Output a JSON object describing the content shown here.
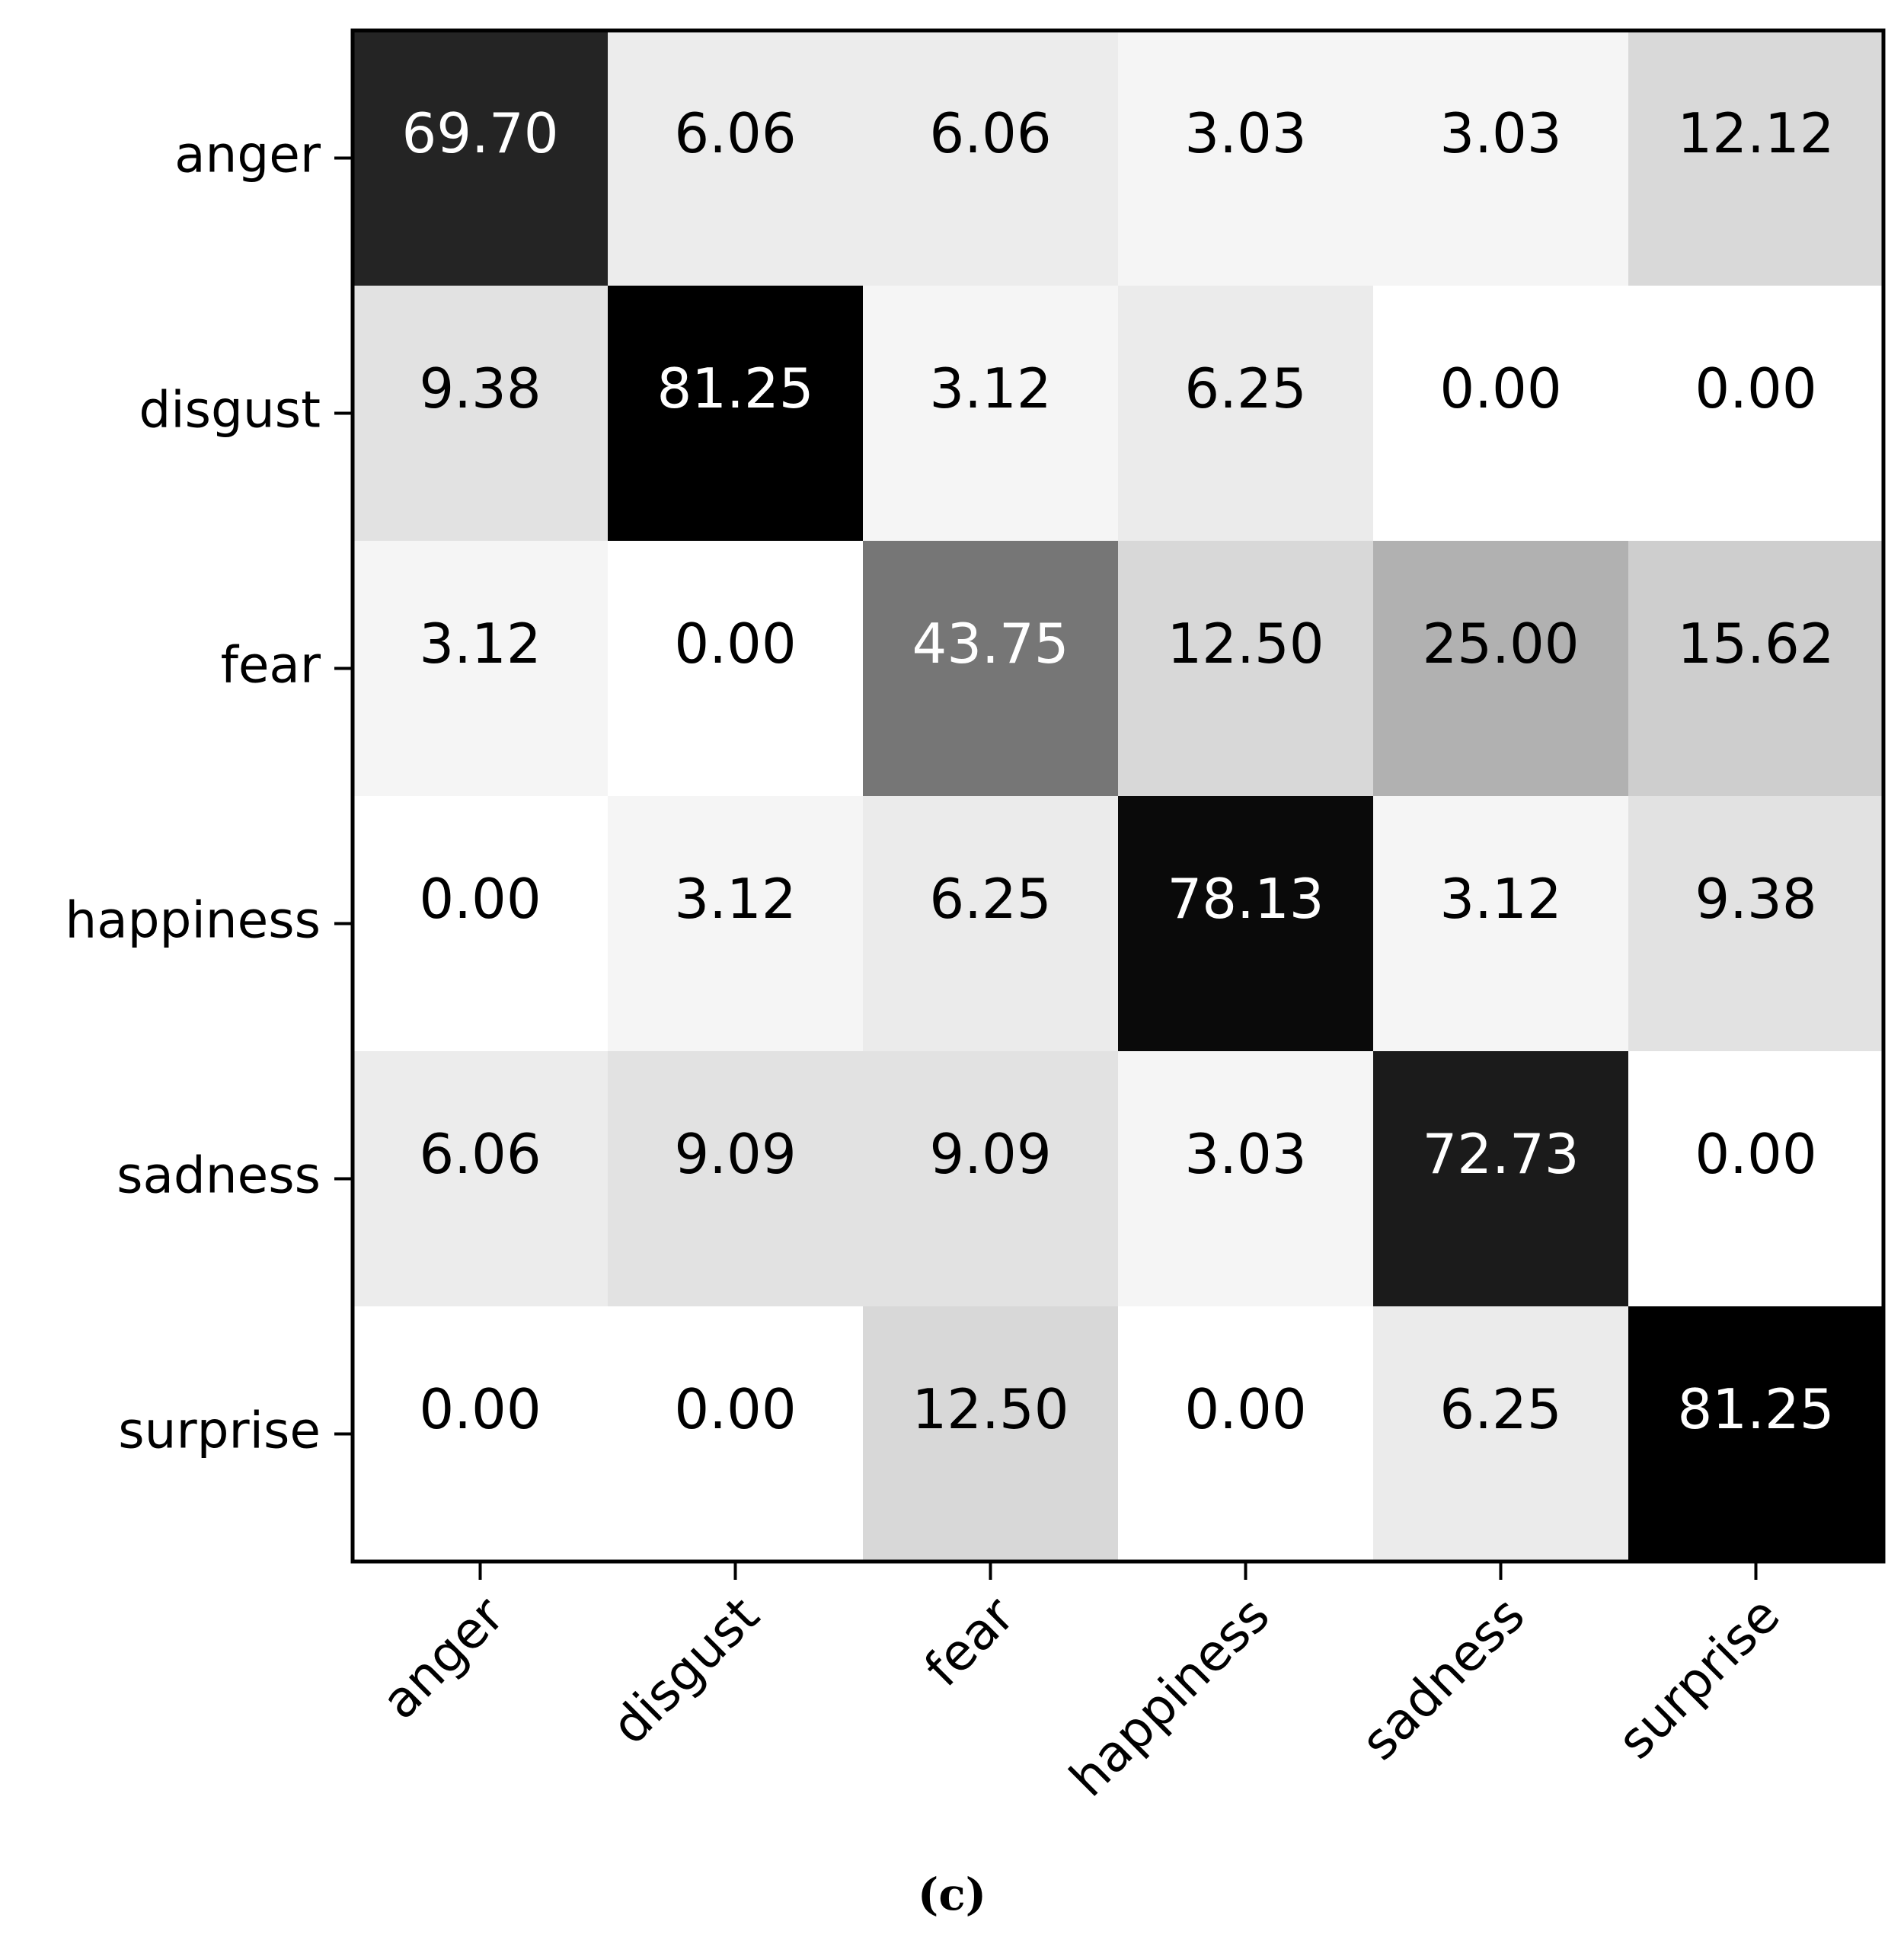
{
  "chart_data": {
    "type": "heatmap",
    "title": "",
    "xlabel": "",
    "ylabel": "",
    "rows": [
      "anger",
      "disgust",
      "fear",
      "happiness",
      "sadness",
      "surprise"
    ],
    "columns": [
      "anger",
      "disgust",
      "fear",
      "happiness",
      "sadness",
      "surprise"
    ],
    "values": [
      [
        "69.70",
        "6.06",
        "6.06",
        "3.03",
        "3.03",
        "12.12"
      ],
      [
        "9.38",
        "81.25",
        "3.12",
        "6.25",
        "0.00",
        "0.00"
      ],
      [
        "3.12",
        "0.00",
        "43.75",
        "12.50",
        "25.00",
        "15.62"
      ],
      [
        "0.00",
        "3.12",
        "6.25",
        "78.13",
        "3.12",
        "9.38"
      ],
      [
        "6.06",
        "9.09",
        "9.09",
        "3.03",
        "72.73",
        "0.00"
      ],
      [
        "0.00",
        "0.00",
        "12.50",
        "0.00",
        "6.25",
        "81.25"
      ]
    ],
    "colormap": "greys",
    "value_range": [
      0,
      81.25
    ],
    "colors": {
      "low": "#ffffff",
      "high": "#000000",
      "text_on_dark": "#ffffff",
      "text_on_light": "#000000"
    }
  },
  "caption": "(c)"
}
